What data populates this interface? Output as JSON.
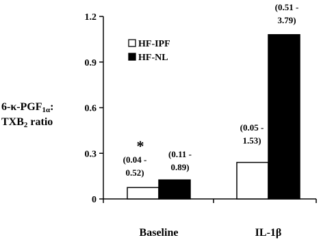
{
  "chart_data": {
    "type": "bar",
    "title": "",
    "ylabel": {
      "line1_main": "6-κ-PGF",
      "line1_sub": "1α",
      "line1_end": ":",
      "line2_main": "TXB",
      "line2_sub": "2",
      "line2_end": " ratio"
    },
    "xlabel": "",
    "categories": [
      "Baseline",
      "IL-1β"
    ],
    "ylim": [
      0,
      1.2
    ],
    "y_ticks": [
      0,
      0.3,
      0.6,
      0.9,
      1.2
    ],
    "y_tick_labels": [
      "0",
      "0.3",
      "0.6",
      "0.9",
      "1.2"
    ],
    "grid": false,
    "legend_position": "top-left",
    "series": [
      {
        "name": "HF-IPF",
        "color": "#ffffff",
        "values": [
          0.075,
          0.24
        ],
        "range_labels": [
          [
            "(0.04 -",
            "0.52)"
          ],
          [
            "(0.05 -",
            "1.53)"
          ]
        ]
      },
      {
        "name": "HF-NL",
        "color": "#000000",
        "values": [
          0.125,
          1.08
        ],
        "range_labels": [
          [
            "(0.11 -",
            "0.89)"
          ],
          [
            "(0.51 -",
            "3.79)"
          ]
        ]
      }
    ],
    "annotations": [
      {
        "text": "*",
        "category": "Baseline",
        "series": "HF-IPF"
      }
    ]
  }
}
